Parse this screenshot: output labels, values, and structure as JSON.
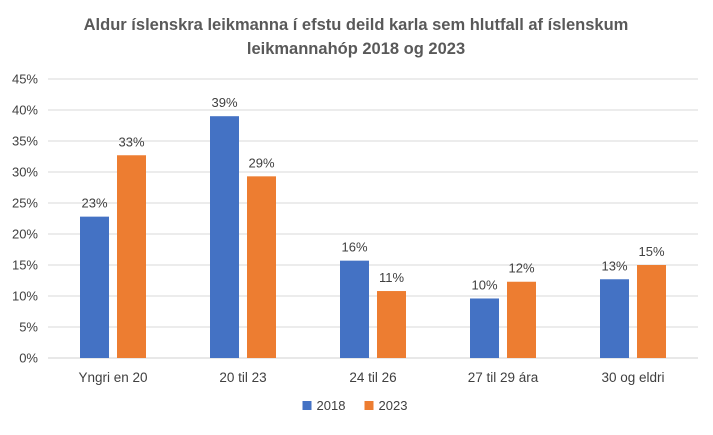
{
  "chart_data": {
    "type": "bar",
    "title_lines": [
      "Aldur íslenskra leikmanna í efstu deild karla sem hlutfall af íslenskum",
      "leikmannahóp 2018 og 2023"
    ],
    "categories": [
      "Yngri en 20",
      "20 til 23",
      "24 til 26",
      "27 til 29 ára",
      "30 og eldri"
    ],
    "series": [
      {
        "name": "2018",
        "color": "#4472C4",
        "values": [
          22.8,
          39.0,
          15.7,
          9.6,
          12.7
        ],
        "labels": [
          "23%",
          "39%",
          "16%",
          "10%",
          "13%"
        ]
      },
      {
        "name": "2023",
        "color": "#ED7D31",
        "values": [
          32.7,
          29.3,
          10.8,
          12.3,
          15.0
        ],
        "labels": [
          "33%",
          "29%",
          "11%",
          "12%",
          "15%"
        ]
      }
    ],
    "yticks": [
      "0%",
      "5%",
      "10%",
      "15%",
      "20%",
      "25%",
      "30%",
      "35%",
      "40%",
      "45%"
    ],
    "ylim": [
      0,
      45
    ],
    "grid": true,
    "legend_position": "bottom"
  }
}
